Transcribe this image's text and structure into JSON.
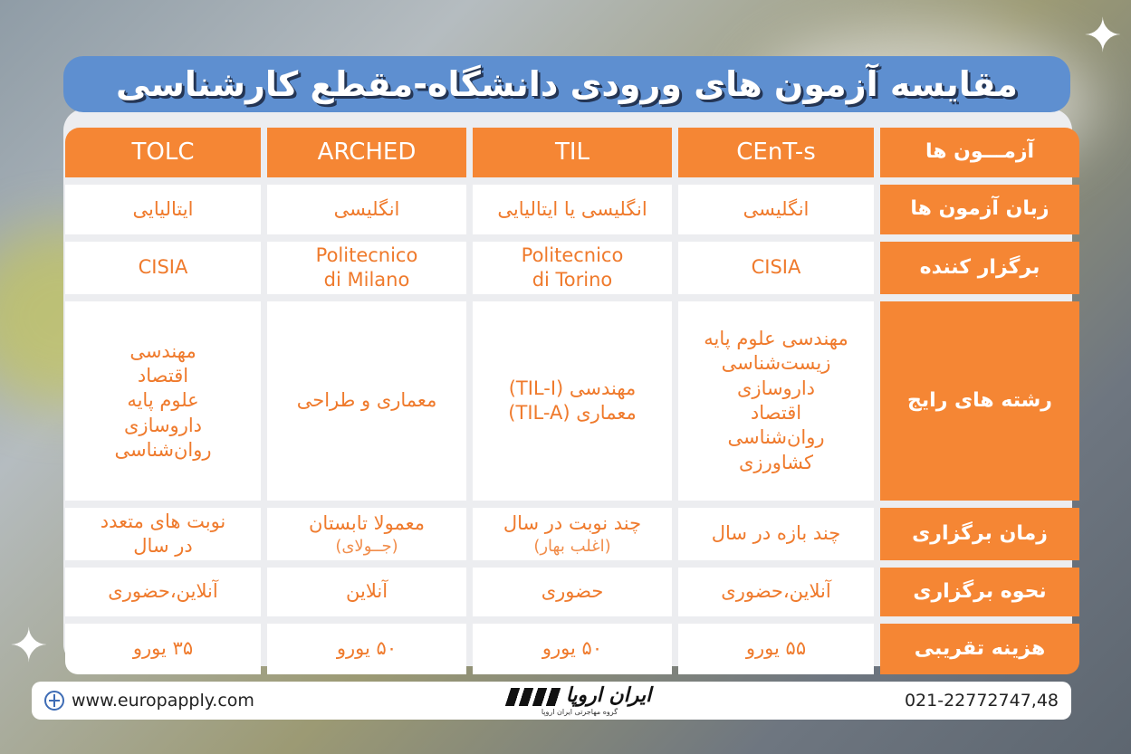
{
  "title": "مقایسه آزمون های ورودی دانشگاه-مقطع کارشناسی",
  "table": {
    "row_header": "آزمـــون ها",
    "exams": [
      "CEnT-s",
      "TIL",
      "ARCHED",
      "TOLC"
    ],
    "rows": {
      "language": {
        "label": "زبان آزمون ها",
        "values": [
          "انگلیسی",
          "انگلیسی یا ایتالیایی",
          "انگلیسی",
          "ایتالیایی"
        ]
      },
      "organizer": {
        "label": "برگزار کننده",
        "values": [
          "CISIA",
          "Politecnico\ndi Torino",
          "Politecnico\ndi Milano",
          "CISIA"
        ]
      },
      "fields": {
        "label": "رشته های رایج",
        "values": [
          "مهندسی علوم پایه\nزیست‌شناسی\nداروسازی\nاقتصاد\nروان‌شناسی\nکشاورزی",
          "مهندسی (TIL-I)\nمعماری (TIL-A)",
          "معماری و طراحی",
          "مهندسی\nاقتصاد\nعلوم پایه\nداروسازی\nروان‌شناسی"
        ]
      },
      "time": {
        "label": "زمان برگزاری",
        "values": [
          "چند بازه در سال",
          "چند نوبت در سال",
          "معمولا تابستان",
          "نوبت های متعدد\nدر سال"
        ],
        "notes": [
          "",
          "(اغلب بهار)",
          "(جــولای)",
          ""
        ]
      },
      "mode": {
        "label": "نحوه برگزاری",
        "values": [
          "آنلاین،حضوری",
          "حضوری",
          "آنلاین",
          "آنلاین،حضوری"
        ]
      },
      "cost": {
        "label": "هزینه تقریبی",
        "values": [
          "۵۵ یورو",
          "۵۰ یورو",
          "۵۰ یورو",
          "۳۵ یورو"
        ]
      }
    }
  },
  "footer": {
    "website": "www.europapply.com",
    "logo_text": "ایران اروپا",
    "logo_subtitle": "گروه مهاجرتی ایران اروپا",
    "phone": "021-22772747,48"
  },
  "icons": [
    "sparkle-icon",
    "globe-icon"
  ],
  "colors": {
    "accent_orange": "#f58634",
    "title_blue": "#5e8fd0",
    "cell_text": "#ef7a2c"
  }
}
